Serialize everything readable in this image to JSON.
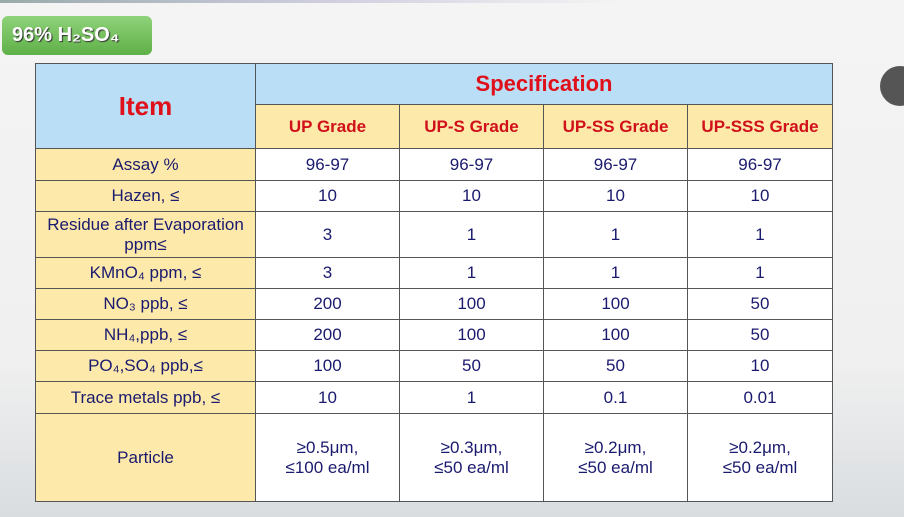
{
  "header": {
    "title": "96% H₂SO₄"
  },
  "table": {
    "item_header": "Item",
    "spec_header": "Specification",
    "grades": [
      "UP Grade",
      "UP-S Grade",
      "UP-SS Grade",
      "UP-SSS Grade"
    ],
    "rows": [
      [
        "Assay %",
        "96-97",
        "96-97",
        "96-97",
        "96-97"
      ],
      [
        "Hazen, ≤",
        "10",
        "10",
        "10",
        "10"
      ],
      [
        "Residue after Evaporation ppm≤",
        "3",
        "1",
        "1",
        "1"
      ],
      [
        "KMnO₄ ppm, ≤",
        "3",
        "1",
        "1",
        "1"
      ],
      [
        "NO₃ ppb, ≤",
        "200",
        "100",
        "100",
        "50"
      ],
      [
        "NH₄,ppb, ≤",
        "200",
        "100",
        "100",
        "50"
      ],
      [
        "PO₄,SO₄ ppb,≤",
        "100",
        "50",
        "50",
        "10"
      ],
      [
        "Trace metals ppb, ≤",
        "10",
        "1",
        "0.1",
        "0.01"
      ],
      [
        "Particle",
        [
          "≥0.5μm,",
          "≤100 ea/ml"
        ],
        [
          "≥0.3μm,",
          "≤50 ea/ml"
        ],
        [
          "≥0.2μm,",
          "≤50 ea/ml"
        ],
        [
          "≥0.2μm,",
          "≤50 ea/ml"
        ]
      ]
    ]
  }
}
